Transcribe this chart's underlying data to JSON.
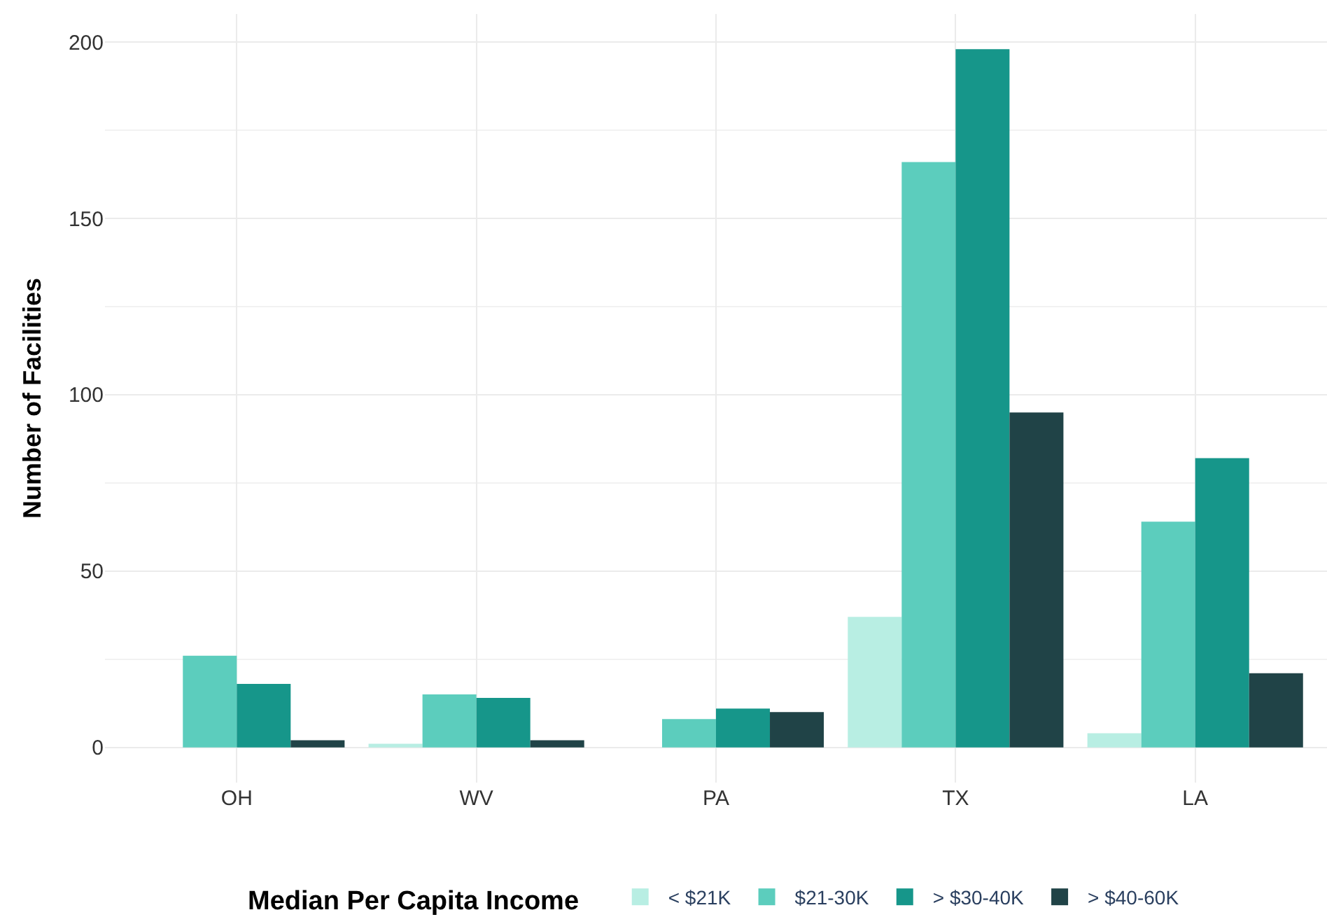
{
  "chart_data": {
    "type": "bar",
    "categories": [
      "OH",
      "WV",
      "PA",
      "TX",
      "LA"
    ],
    "ylabel": "Number of Facilities",
    "legend_title": "Median Per Capita Income",
    "legend": "bottom",
    "grid": true,
    "ylim": [
      -10,
      208
    ],
    "yticks": [
      0,
      50,
      100,
      150,
      200
    ],
    "series": [
      {
        "name": "< $21K",
        "color": "#b8eee3",
        "values": [
          null,
          1,
          null,
          37,
          4
        ]
      },
      {
        "name": "$21-30K",
        "color": "#5ccdbd",
        "values": [
          26,
          15,
          8,
          166,
          64
        ]
      },
      {
        "name": "> $30-40K",
        "color": "#16968a",
        "values": [
          18,
          14,
          11,
          198,
          82
        ]
      },
      {
        "name": "> $40-60K",
        "color": "#204347",
        "values": [
          2,
          2,
          10,
          95,
          21
        ]
      }
    ]
  }
}
